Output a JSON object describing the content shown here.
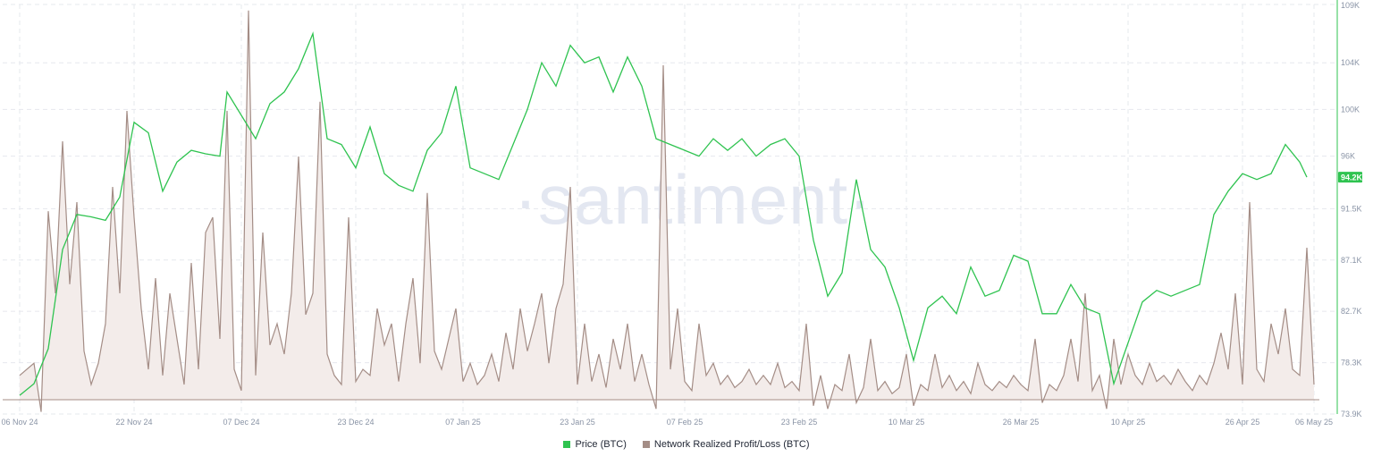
{
  "watermark": "·santiment·",
  "colors": {
    "price": "#2fc350",
    "profit_loss": "#a48d86",
    "profit_fill": "#f3ecea",
    "grid": "#e6e8ee",
    "axis_accent": "#2fc350"
  },
  "legend": [
    {
      "name": "Price (BTC)",
      "color": "#2fc350"
    },
    {
      "name": "Network Realized Profit/Loss (BTC)",
      "color": "#a48d86"
    }
  ],
  "chart_data": {
    "type": "line",
    "title": "",
    "x_ticks": [
      "06 Nov 24",
      "22 Nov 24",
      "07 Dec 24",
      "23 Dec 24",
      "07 Jan 25",
      "23 Jan 25",
      "07 Feb 25",
      "23 Feb 25",
      "10 Mar 25",
      "26 Mar 25",
      "10 Apr 25",
      "26 Apr 25",
      "06 May 25"
    ],
    "y_right_ticks": [
      "109K",
      "104K",
      "100K",
      "96K",
      "91.5K",
      "87.1K",
      "82.7K",
      "78.3K",
      "73.9K"
    ],
    "y_range": [
      73900,
      109000
    ],
    "current_price_label": "94.2K",
    "grid": true,
    "legend_position": "bottom-center",
    "series": [
      {
        "name": "Price (BTC)",
        "axis": "right",
        "points": [
          [
            "06 Nov 24",
            75500
          ],
          [
            "08 Nov 24",
            76500
          ],
          [
            "10 Nov 24",
            79500
          ],
          [
            "12 Nov 24",
            88000
          ],
          [
            "14 Nov 24",
            91000
          ],
          [
            "16 Nov 24",
            90800
          ],
          [
            "18 Nov 24",
            90500
          ],
          [
            "20 Nov 24",
            92500
          ],
          [
            "22 Nov 24",
            98900
          ],
          [
            "24 Nov 24",
            98000
          ],
          [
            "26 Nov 24",
            93000
          ],
          [
            "28 Nov 24",
            95500
          ],
          [
            "30 Nov 24",
            96500
          ],
          [
            "02 Dec 24",
            96200
          ],
          [
            "04 Dec 24",
            96000
          ],
          [
            "05 Dec 24",
            101500
          ],
          [
            "07 Dec 24",
            99500
          ],
          [
            "09 Dec 24",
            97500
          ],
          [
            "11 Dec 24",
            100500
          ],
          [
            "13 Dec 24",
            101500
          ],
          [
            "15 Dec 24",
            103500
          ],
          [
            "17 Dec 24",
            106500
          ],
          [
            "19 Dec 24",
            97500
          ],
          [
            "21 Dec 24",
            97000
          ],
          [
            "23 Dec 24",
            95000
          ],
          [
            "25 Dec 24",
            98500
          ],
          [
            "27 Dec 24",
            94500
          ],
          [
            "29 Dec 24",
            93500
          ],
          [
            "31 Dec 24",
            93000
          ],
          [
            "02 Jan 25",
            96500
          ],
          [
            "04 Jan 25",
            98000
          ],
          [
            "06 Jan 25",
            102000
          ],
          [
            "08 Jan 25",
            95000
          ],
          [
            "10 Jan 25",
            94500
          ],
          [
            "12 Jan 25",
            94000
          ],
          [
            "14 Jan 25",
            97000
          ],
          [
            "16 Jan 25",
            100000
          ],
          [
            "18 Jan 25",
            104000
          ],
          [
            "20 Jan 25",
            102000
          ],
          [
            "22 Jan 25",
            105500
          ],
          [
            "24 Jan 25",
            104000
          ],
          [
            "26 Jan 25",
            104500
          ],
          [
            "28 Jan 25",
            101500
          ],
          [
            "30 Jan 25",
            104500
          ],
          [
            "01 Feb 25",
            102000
          ],
          [
            "03 Feb 25",
            97500
          ],
          [
            "05 Feb 25",
            97000
          ],
          [
            "07 Feb 25",
            96500
          ],
          [
            "09 Feb 25",
            96000
          ],
          [
            "11 Feb 25",
            97500
          ],
          [
            "13 Feb 25",
            96500
          ],
          [
            "15 Feb 25",
            97500
          ],
          [
            "17 Feb 25",
            96000
          ],
          [
            "19 Feb 25",
            97000
          ],
          [
            "21 Feb 25",
            97500
          ],
          [
            "23 Feb 25",
            96000
          ],
          [
            "25 Feb 25",
            88800
          ],
          [
            "27 Feb 25",
            84000
          ],
          [
            "01 Mar 25",
            86000
          ],
          [
            "03 Mar 25",
            94000
          ],
          [
            "05 Mar 25",
            88000
          ],
          [
            "07 Mar 25",
            86500
          ],
          [
            "09 Mar 25",
            83000
          ],
          [
            "11 Mar 25",
            78500
          ],
          [
            "13 Mar 25",
            83000
          ],
          [
            "15 Mar 25",
            84000
          ],
          [
            "17 Mar 25",
            82500
          ],
          [
            "19 Mar 25",
            86500
          ],
          [
            "21 Mar 25",
            84000
          ],
          [
            "23 Mar 25",
            84500
          ],
          [
            "25 Mar 25",
            87500
          ],
          [
            "27 Mar 25",
            87000
          ],
          [
            "29 Mar 25",
            82500
          ],
          [
            "31 Mar 25",
            82500
          ],
          [
            "02 Apr 25",
            85000
          ],
          [
            "04 Apr 25",
            83000
          ],
          [
            "06 Apr 25",
            82500
          ],
          [
            "08 Apr 25",
            76500
          ],
          [
            "10 Apr 25",
            80000
          ],
          [
            "12 Apr 25",
            83500
          ],
          [
            "14 Apr 25",
            84500
          ],
          [
            "16 Apr 25",
            84000
          ],
          [
            "18 Apr 25",
            84500
          ],
          [
            "20 Apr 25",
            85000
          ],
          [
            "22 Apr 25",
            91000
          ],
          [
            "24 Apr 25",
            93000
          ],
          [
            "26 Apr 25",
            94500
          ],
          [
            "28 Apr 25",
            94000
          ],
          [
            "30 Apr 25",
            94500
          ],
          [
            "02 May 25",
            97000
          ],
          [
            "04 May 25",
            95500
          ],
          [
            "05 May 25",
            94200
          ]
        ]
      },
      {
        "name": "Network Realized Profit/Loss (BTC)",
        "axis": "left",
        "baseline": 0,
        "points": [
          [
            "06 Nov 24",
            8
          ],
          [
            "08 Nov 24",
            12
          ],
          [
            "09 Nov 24",
            -4
          ],
          [
            "10 Nov 24",
            62
          ],
          [
            "11 Nov 24",
            35
          ],
          [
            "12 Nov 24",
            85
          ],
          [
            "13 Nov 24",
            38
          ],
          [
            "14 Nov 24",
            65
          ],
          [
            "15 Nov 24",
            16
          ],
          [
            "16 Nov 24",
            5
          ],
          [
            "17 Nov 24",
            12
          ],
          [
            "18 Nov 24",
            25
          ],
          [
            "19 Nov 24",
            70
          ],
          [
            "20 Nov 24",
            35
          ],
          [
            "21 Nov 24",
            95
          ],
          [
            "22 Nov 24",
            60
          ],
          [
            "23 Nov 24",
            30
          ],
          [
            "24 Nov 24",
            10
          ],
          [
            "25 Nov 24",
            40
          ],
          [
            "26 Nov 24",
            8
          ],
          [
            "27 Nov 24",
            35
          ],
          [
            "28 Nov 24",
            20
          ],
          [
            "29 Nov 24",
            5
          ],
          [
            "30 Nov 24",
            45
          ],
          [
            "01 Dec 24",
            10
          ],
          [
            "02 Dec 24",
            55
          ],
          [
            "03 Dec 24",
            60
          ],
          [
            "04 Dec 24",
            20
          ],
          [
            "05 Dec 24",
            95
          ],
          [
            "06 Dec 24",
            10
          ],
          [
            "07 Dec 24",
            3
          ],
          [
            "08 Dec 24",
            128
          ],
          [
            "09 Dec 24",
            8
          ],
          [
            "10 Dec 24",
            55
          ],
          [
            "11 Dec 24",
            18
          ],
          [
            "12 Dec 24",
            25
          ],
          [
            "13 Dec 24",
            15
          ],
          [
            "14 Dec 24",
            35
          ],
          [
            "15 Dec 24",
            80
          ],
          [
            "16 Dec 24",
            28
          ],
          [
            "17 Dec 24",
            35
          ],
          [
            "18 Dec 24",
            98
          ],
          [
            "19 Dec 24",
            15
          ],
          [
            "20 Dec 24",
            8
          ],
          [
            "21 Dec 24",
            5
          ],
          [
            "22 Dec 24",
            60
          ],
          [
            "23 Dec 24",
            6
          ],
          [
            "24 Dec 24",
            10
          ],
          [
            "25 Dec 24",
            8
          ],
          [
            "26 Dec 24",
            30
          ],
          [
            "27 Dec 24",
            18
          ],
          [
            "28 Dec 24",
            25
          ],
          [
            "29 Dec 24",
            6
          ],
          [
            "30 Dec 24",
            25
          ],
          [
            "31 Dec 24",
            40
          ],
          [
            "01 Jan 25",
            12
          ],
          [
            "02 Jan 25",
            68
          ],
          [
            "03 Jan 25",
            16
          ],
          [
            "04 Jan 25",
            10
          ],
          [
            "05 Jan 25",
            20
          ],
          [
            "06 Jan 25",
            30
          ],
          [
            "07 Jan 25",
            6
          ],
          [
            "08 Jan 25",
            12
          ],
          [
            "09 Jan 25",
            5
          ],
          [
            "10 Jan 25",
            8
          ],
          [
            "11 Jan 25",
            15
          ],
          [
            "12 Jan 25",
            6
          ],
          [
            "13 Jan 25",
            22
          ],
          [
            "14 Jan 25",
            10
          ],
          [
            "15 Jan 25",
            30
          ],
          [
            "16 Jan 25",
            16
          ],
          [
            "17 Jan 25",
            25
          ],
          [
            "18 Jan 25",
            35
          ],
          [
            "19 Jan 25",
            12
          ],
          [
            "20 Jan 25",
            30
          ],
          [
            "21 Jan 25",
            38
          ],
          [
            "22 Jan 25",
            70
          ],
          [
            "23 Jan 25",
            5
          ],
          [
            "24 Jan 25",
            25
          ],
          [
            "25 Jan 25",
            6
          ],
          [
            "26 Jan 25",
            15
          ],
          [
            "27 Jan 25",
            4
          ],
          [
            "28 Jan 25",
            20
          ],
          [
            "29 Jan 25",
            10
          ],
          [
            "30 Jan 25",
            25
          ],
          [
            "31 Jan 25",
            6
          ],
          [
            "01 Feb 25",
            15
          ],
          [
            "02 Feb 25",
            5
          ],
          [
            "03 Feb 25",
            -3
          ],
          [
            "04 Feb 25",
            110
          ],
          [
            "05 Feb 25",
            10
          ],
          [
            "06 Feb 25",
            30
          ],
          [
            "07 Feb 25",
            6
          ],
          [
            "08 Feb 25",
            3
          ],
          [
            "09 Feb 25",
            25
          ],
          [
            "10 Feb 25",
            8
          ],
          [
            "11 Feb 25",
            12
          ],
          [
            "12 Feb 25",
            5
          ],
          [
            "13 Feb 25",
            8
          ],
          [
            "14 Feb 25",
            4
          ],
          [
            "15 Feb 25",
            6
          ],
          [
            "16 Feb 25",
            10
          ],
          [
            "17 Feb 25",
            5
          ],
          [
            "18 Feb 25",
            8
          ],
          [
            "19 Feb 25",
            5
          ],
          [
            "20 Feb 25",
            12
          ],
          [
            "21 Feb 25",
            4
          ],
          [
            "22 Feb 25",
            6
          ],
          [
            "23 Feb 25",
            3
          ],
          [
            "24 Feb 25",
            25
          ],
          [
            "25 Feb 25",
            -2
          ],
          [
            "26 Feb 25",
            8
          ],
          [
            "27 Feb 25",
            -3
          ],
          [
            "28 Feb 25",
            5
          ],
          [
            "01 Mar 25",
            3
          ],
          [
            "02 Mar 25",
            15
          ],
          [
            "03 Mar 25",
            -1
          ],
          [
            "04 Mar 25",
            4
          ],
          [
            "05 Mar 25",
            20
          ],
          [
            "06 Mar 25",
            3
          ],
          [
            "07 Mar 25",
            6
          ],
          [
            "08 Mar 25",
            2
          ],
          [
            "09 Mar 25",
            4
          ],
          [
            "10 Mar 25",
            15
          ],
          [
            "11 Mar 25",
            -2
          ],
          [
            "12 Mar 25",
            5
          ],
          [
            "13 Mar 25",
            3
          ],
          [
            "14 Mar 25",
            15
          ],
          [
            "15 Mar 25",
            4
          ],
          [
            "16 Mar 25",
            8
          ],
          [
            "17 Mar 25",
            3
          ],
          [
            "18 Mar 25",
            6
          ],
          [
            "19 Mar 25",
            2
          ],
          [
            "20 Mar 25",
            12
          ],
          [
            "21 Mar 25",
            5
          ],
          [
            "22 Mar 25",
            3
          ],
          [
            "23 Mar 25",
            6
          ],
          [
            "24 Mar 25",
            4
          ],
          [
            "25 Mar 25",
            8
          ],
          [
            "26 Mar 25",
            5
          ],
          [
            "27 Mar 25",
            3
          ],
          [
            "28 Mar 25",
            20
          ],
          [
            "29 Mar 25",
            -1
          ],
          [
            "30 Mar 25",
            5
          ],
          [
            "31 Mar 25",
            3
          ],
          [
            "01 Apr 25",
            8
          ],
          [
            "02 Apr 25",
            20
          ],
          [
            "03 Apr 25",
            6
          ],
          [
            "04 Apr 25",
            35
          ],
          [
            "05 Apr 25",
            3
          ],
          [
            "06 Apr 25",
            8
          ],
          [
            "07 Apr 25",
            -3
          ],
          [
            "08 Apr 25",
            20
          ],
          [
            "09 Apr 25",
            5
          ],
          [
            "10 Apr 25",
            15
          ],
          [
            "11 Apr 25",
            8
          ],
          [
            "12 Apr 25",
            5
          ],
          [
            "13 Apr 25",
            12
          ],
          [
            "14 Apr 25",
            6
          ],
          [
            "15 Apr 25",
            8
          ],
          [
            "16 Apr 25",
            5
          ],
          [
            "17 Apr 25",
            10
          ],
          [
            "18 Apr 25",
            6
          ],
          [
            "19 Apr 25",
            3
          ],
          [
            "20 Apr 25",
            8
          ],
          [
            "21 Apr 25",
            5
          ],
          [
            "22 Apr 25",
            12
          ],
          [
            "23 Apr 25",
            22
          ],
          [
            "24 Apr 25",
            10
          ],
          [
            "25 Apr 25",
            35
          ],
          [
            "26 Apr 25",
            5
          ],
          [
            "27 Apr 25",
            65
          ],
          [
            "28 Apr 25",
            10
          ],
          [
            "29 Apr 25",
            6
          ],
          [
            "30 Apr 25",
            25
          ],
          [
            "01 May 25",
            15
          ],
          [
            "02 May 25",
            30
          ],
          [
            "03 May 25",
            10
          ],
          [
            "04 May 25",
            8
          ],
          [
            "05 May 25",
            50
          ],
          [
            "06 May 25",
            5
          ]
        ]
      }
    ]
  }
}
